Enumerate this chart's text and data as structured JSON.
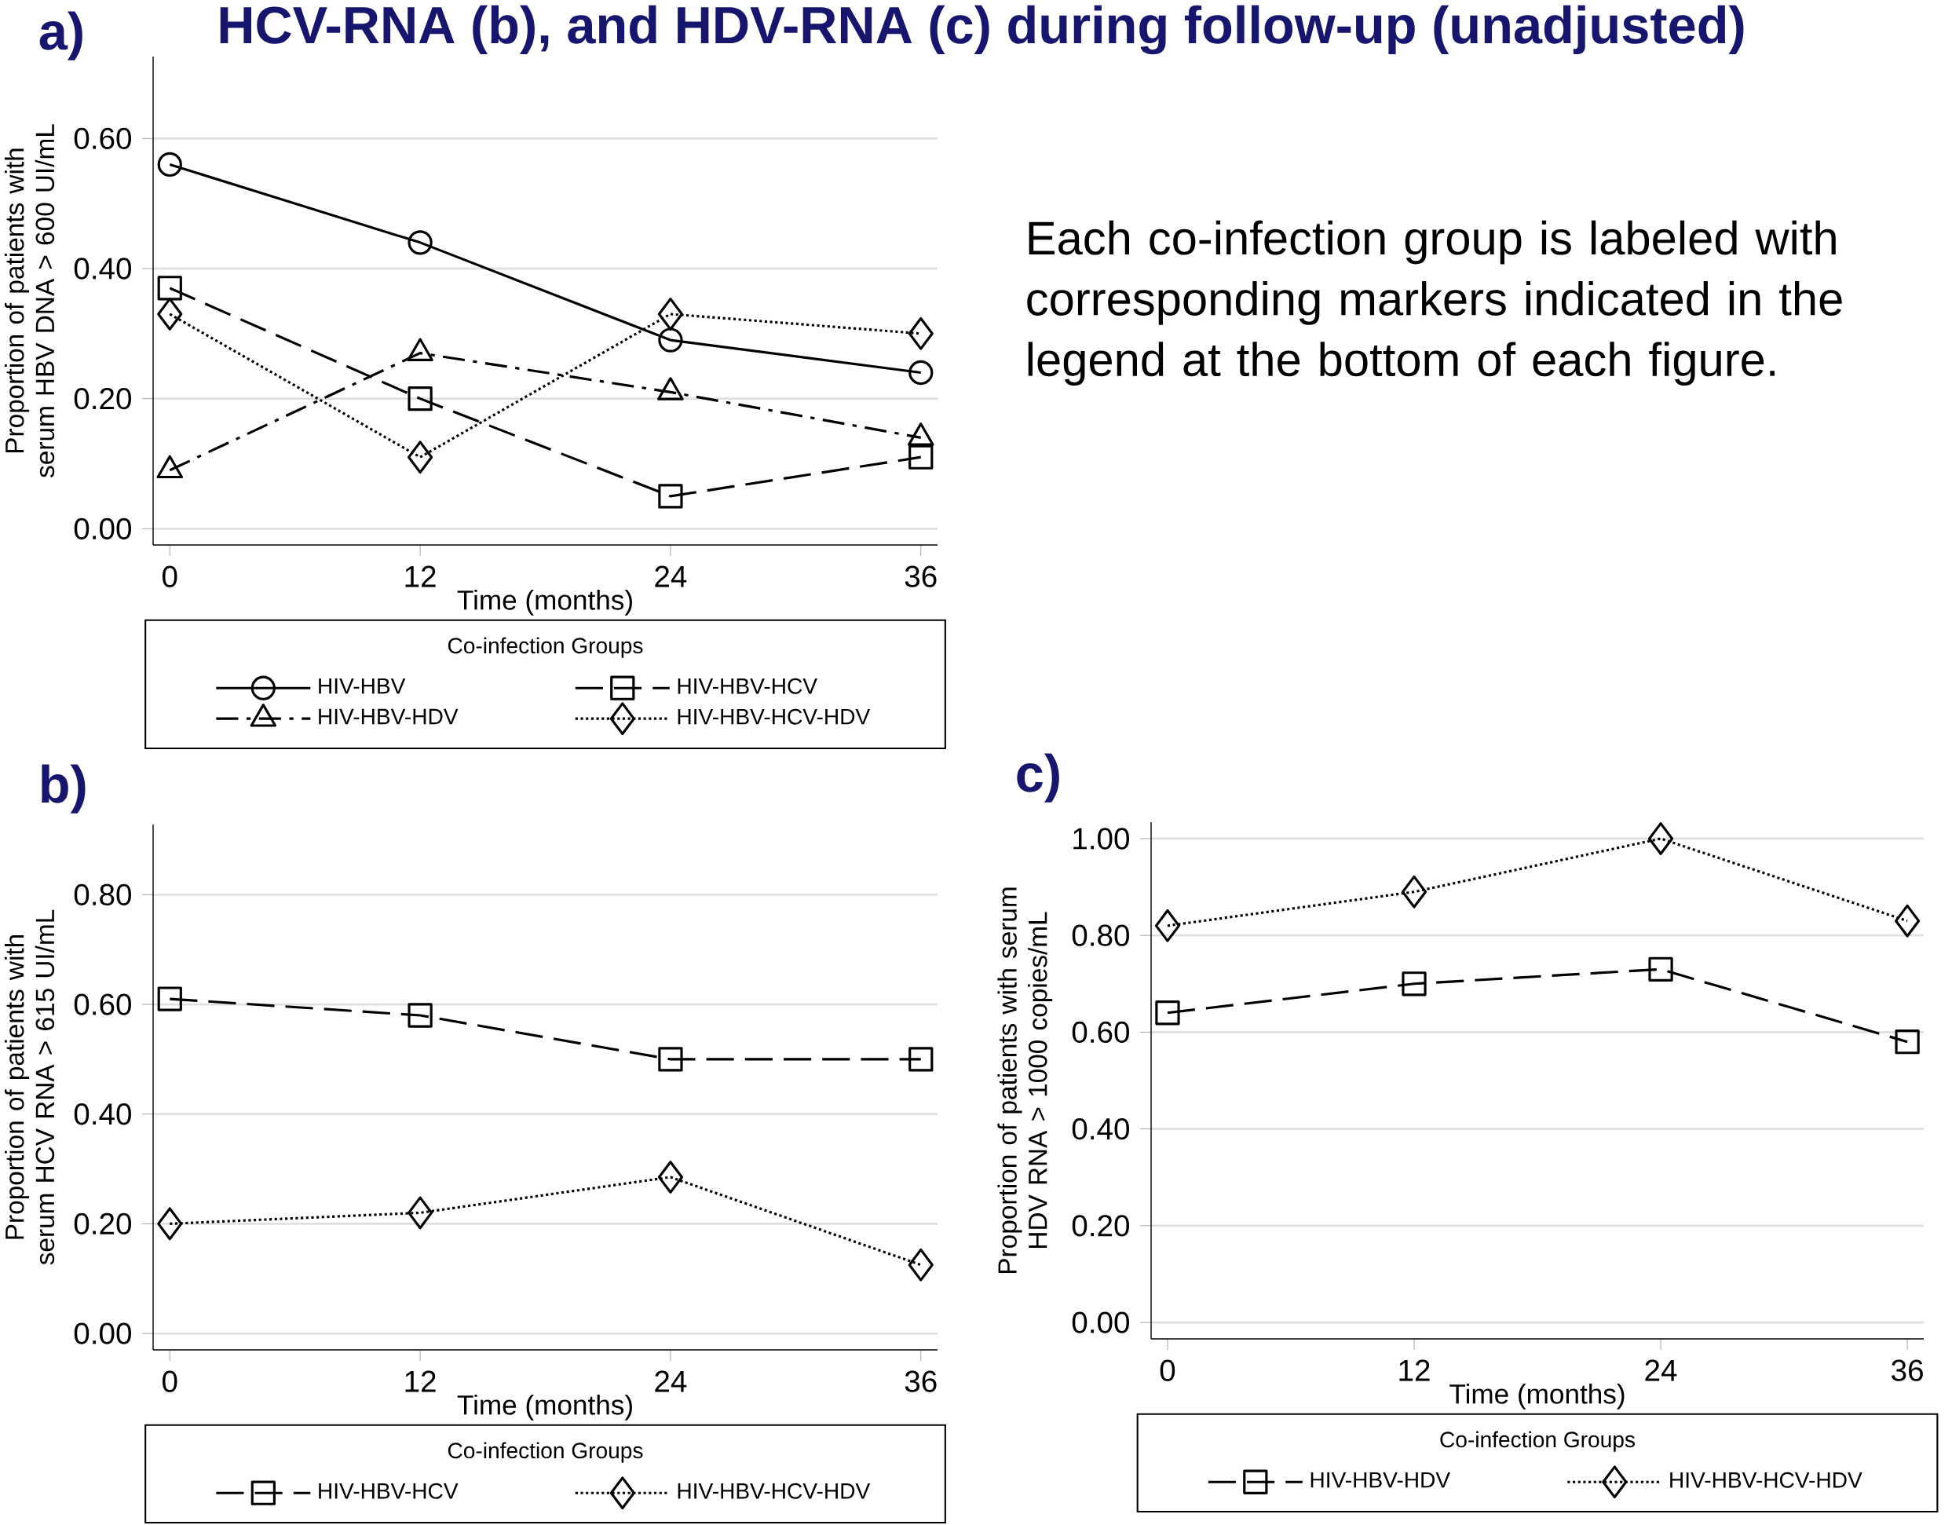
{
  "chart_data": [
    {
      "type": "line",
      "title": "a)",
      "xlabel": "Time (months)",
      "ylabel": "Proportion of patients with serum HBV DNA > 600 UI/mL",
      "legend_title": "Co-infection Groups",
      "legend": "bottom",
      "grid": "y",
      "x": [
        0,
        12,
        24,
        36
      ],
      "xlim": [
        -0.8,
        36.8
      ],
      "xticks": [
        0,
        12,
        24,
        36
      ],
      "ylim": [
        -0.025,
        0.726
      ],
      "yticks": [
        {
          "value": 0,
          "label": "0.00"
        },
        {
          "value": 0.2,
          "label": "0.20"
        },
        {
          "value": 0.4,
          "label": "0.40"
        },
        {
          "value": 0.6,
          "label": "0.60"
        }
      ],
      "series": [
        {
          "name": "HIV-HBV",
          "color": "#000000",
          "marker": "circle",
          "line_style": "solid",
          "values": [
            0.56,
            0.44,
            0.29,
            0.24
          ]
        },
        {
          "name": "HIV-HBV-HCV",
          "color": "#000000",
          "marker": "square",
          "line_style": "dashed",
          "values": [
            0.37,
            0.2,
            0.05,
            0.11
          ]
        },
        {
          "name": "HIV-HBV-HDV",
          "color": "#000000",
          "marker": "triangle",
          "line_style": "dashdot",
          "values": [
            0.09,
            0.27,
            0.21,
            0.14
          ]
        },
        {
          "name": "HIV-HBV-HCV-HDV",
          "color": "#000000",
          "marker": "diamond",
          "line_style": "dotted",
          "values": [
            0.33,
            0.11,
            0.33,
            0.3
          ]
        }
      ]
    },
    {
      "type": "line",
      "title": "b)",
      "xlabel": "Time (months)",
      "ylabel": "Proportion of patients with serum HCV RNA > 615 UI/mL",
      "legend_title": "Co-infection Groups",
      "legend": "bottom",
      "grid": "y",
      "x": [
        0,
        12,
        24,
        36
      ],
      "xlim": [
        -0.8,
        36.8
      ],
      "xticks": [
        0,
        12,
        24,
        36
      ],
      "ylim": [
        -0.03,
        0.928
      ],
      "yticks": [
        {
          "value": 0,
          "label": "0.00"
        },
        {
          "value": 0.2,
          "label": "0.20"
        },
        {
          "value": 0.4,
          "label": "0.40"
        },
        {
          "value": 0.6,
          "label": "0.60"
        },
        {
          "value": 0.8,
          "label": "0.80"
        }
      ],
      "series": [
        {
          "name": "HIV-HBV-HCV",
          "color": "#000000",
          "marker": "square",
          "line_style": "dashed",
          "values": [
            0.61,
            0.58,
            0.5,
            0.5
          ]
        },
        {
          "name": "HIV-HBV-HCV-HDV",
          "color": "#000000",
          "marker": "diamond",
          "line_style": "dotted",
          "values": [
            0.2,
            0.22,
            0.285,
            0.125
          ]
        }
      ]
    },
    {
      "type": "line",
      "title": "c)",
      "xlabel": "Time (months)",
      "ylabel": "Proportion of patients with serum HDV RNA > 1000 copies/mL",
      "legend_title": "Co-infection Groups",
      "legend": "bottom",
      "grid": "y",
      "x": [
        0,
        12,
        24,
        36
      ],
      "xlim": [
        -0.8,
        36.8
      ],
      "xticks": [
        0,
        12,
        24,
        36
      ],
      "ylim": [
        -0.034,
        1.034
      ],
      "yticks": [
        {
          "value": 0,
          "label": "0.00"
        },
        {
          "value": 0.2,
          "label": "0.20"
        },
        {
          "value": 0.4,
          "label": "0.40"
        },
        {
          "value": 0.6,
          "label": "0.60"
        },
        {
          "value": 0.8,
          "label": "0.80"
        },
        {
          "value": 1.0,
          "label": "1.00"
        }
      ],
      "series": [
        {
          "name": "HIV-HBV-HDV",
          "color": "#000000",
          "marker": "square",
          "line_style": "dashed",
          "values": [
            0.64,
            0.7,
            0.73,
            0.58
          ]
        },
        {
          "name": "HIV-HBV-HCV-HDV",
          "color": "#000000",
          "marker": "diamond",
          "line_style": "dotted",
          "values": [
            0.82,
            0.89,
            1.0,
            0.83
          ]
        }
      ]
    },
    {
      "type": "other",
      "annotations": [
        "HCV-RNA (b), and HDV-RNA (c) during follow-up (unadjusted)",
        "Each co-infection group is labeled with corresponding markers indicated in the legend at the bottom of each figure."
      ]
    }
  ]
}
